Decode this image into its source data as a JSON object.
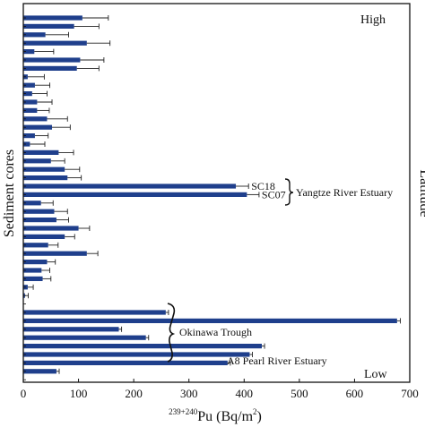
{
  "chart_data": {
    "type": "bar",
    "orientation": "horizontal",
    "xlabel_sup": "239+240",
    "xlabel_main": "Pu (Bq/m",
    "xlabel_unit_sup": "2",
    "xlabel_close": ")",
    "ylabel": "Sediment cores",
    "right_label": "Latitude",
    "top_label": "High",
    "bottom_label": "Low",
    "xlim": [
      0,
      700
    ],
    "xticks": [
      0,
      100,
      200,
      300,
      400,
      500,
      600,
      700
    ],
    "grid": false,
    "bar_color": "#1f3f8c",
    "bars": [
      {
        "value": 107,
        "error": 47
      },
      {
        "value": 92,
        "error": 45
      },
      {
        "value": 40,
        "error": 42
      },
      {
        "value": 115,
        "error": 42
      },
      {
        "value": 20,
        "error": 35
      },
      {
        "value": 103,
        "error": 43
      },
      {
        "value": 97,
        "error": 40
      },
      {
        "value": 8,
        "error": 30
      },
      {
        "value": 21,
        "error": 27
      },
      {
        "value": 16,
        "error": 27
      },
      {
        "value": 25,
        "error": 27
      },
      {
        "value": 25,
        "error": 22
      },
      {
        "value": 43,
        "error": 37
      },
      {
        "value": 52,
        "error": 33
      },
      {
        "value": 21,
        "error": 24
      },
      {
        "value": 12,
        "error": 27
      },
      {
        "value": 64,
        "error": 27
      },
      {
        "value": 50,
        "error": 25
      },
      {
        "value": 75,
        "error": 27
      },
      {
        "value": 80,
        "error": 25
      },
      {
        "value": 385,
        "error": 23,
        "label": "SC18"
      },
      {
        "value": 405,
        "error": 22,
        "label": "SC07"
      },
      {
        "value": 32,
        "error": 22
      },
      {
        "value": 56,
        "error": 24
      },
      {
        "value": 60,
        "error": 22
      },
      {
        "value": 100,
        "error": 20
      },
      {
        "value": 75,
        "error": 18
      },
      {
        "value": 45,
        "error": 18
      },
      {
        "value": 115,
        "error": 20
      },
      {
        "value": 43,
        "error": 15
      },
      {
        "value": 33,
        "error": 15
      },
      {
        "value": 35,
        "error": 15
      },
      {
        "value": 8,
        "error": 10
      },
      {
        "value": 3,
        "error": 6
      },
      {
        "value": 0,
        "error": 0
      },
      {
        "value": 258,
        "error": 5
      },
      {
        "value": 677,
        "error": 6
      },
      {
        "value": 173,
        "error": 5
      },
      {
        "value": 222,
        "error": 5
      },
      {
        "value": 432,
        "error": 5
      },
      {
        "value": 410,
        "error": 5
      },
      {
        "value": 370,
        "error": 5
      },
      {
        "value": 60,
        "error": 5
      },
      {
        "value": 0,
        "error": 0
      }
    ],
    "annotations": {
      "yangtze": "Yangtze River Estuary",
      "okinawa": "Okinawa Trough",
      "a8": "A8 Pearl  River  Estuary"
    }
  }
}
